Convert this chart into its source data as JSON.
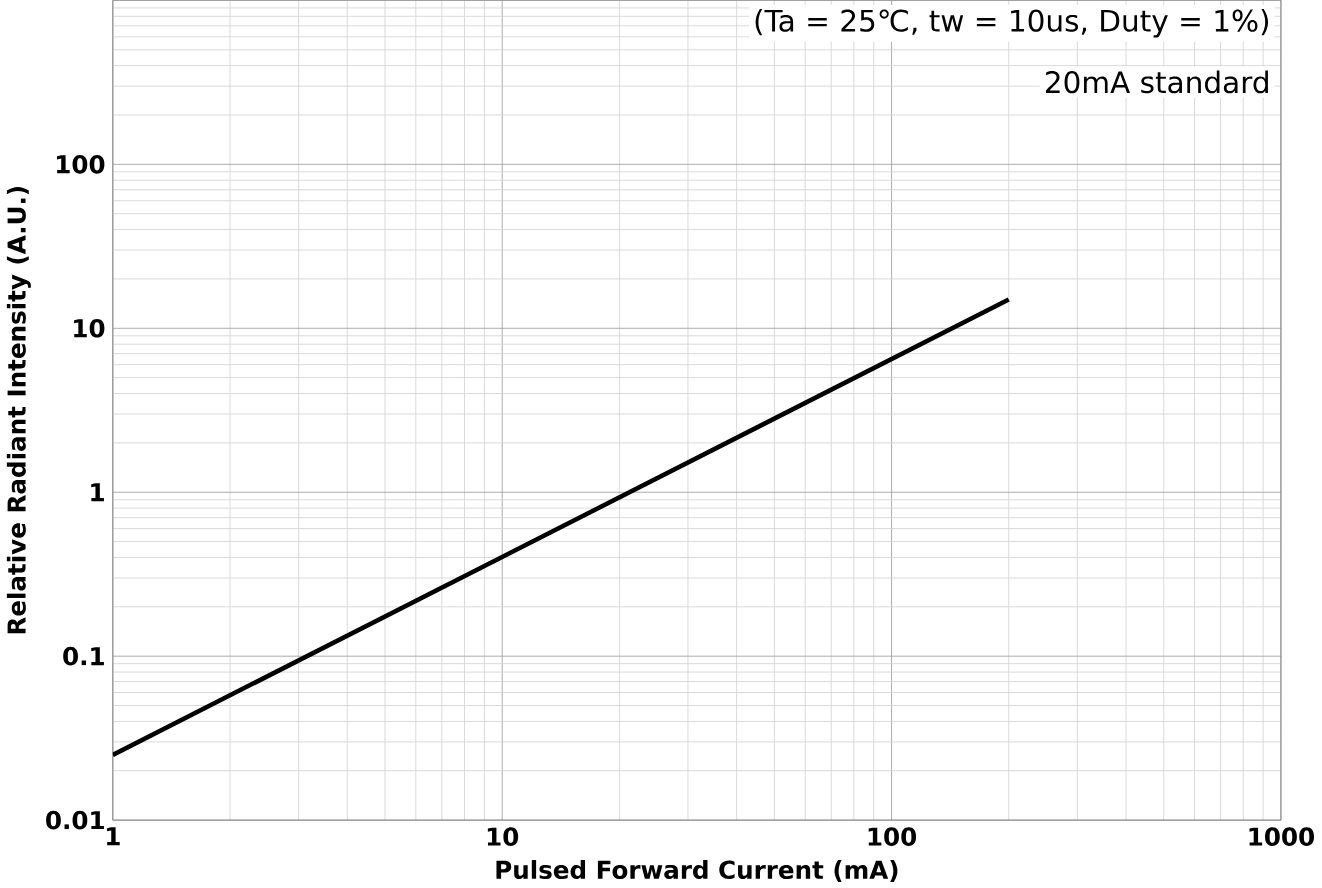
{
  "chart_data": {
    "type": "line",
    "xlabel": "Pulsed Forward Current (mA)",
    "ylabel": "Relative Radiant Intensity (A.U.)",
    "annotations": [
      "(Ta = 25℃, tw = 10us, Duty = 1%)",
      "20mA standard"
    ],
    "x": [
      1,
      200
    ],
    "series": [
      {
        "color": "#000000",
        "values": [
          0.025,
          15
        ]
      }
    ],
    "log": "xy",
    "grid": true,
    "marker": "none",
    "line_style": "solid",
    "xlim": [
      1,
      1000
    ],
    "ylim": [
      0.01,
      1000
    ],
    "xticks": [
      1,
      10,
      100,
      1000
    ],
    "yticks": [
      0.01,
      0.1,
      1,
      10,
      100
    ]
  }
}
